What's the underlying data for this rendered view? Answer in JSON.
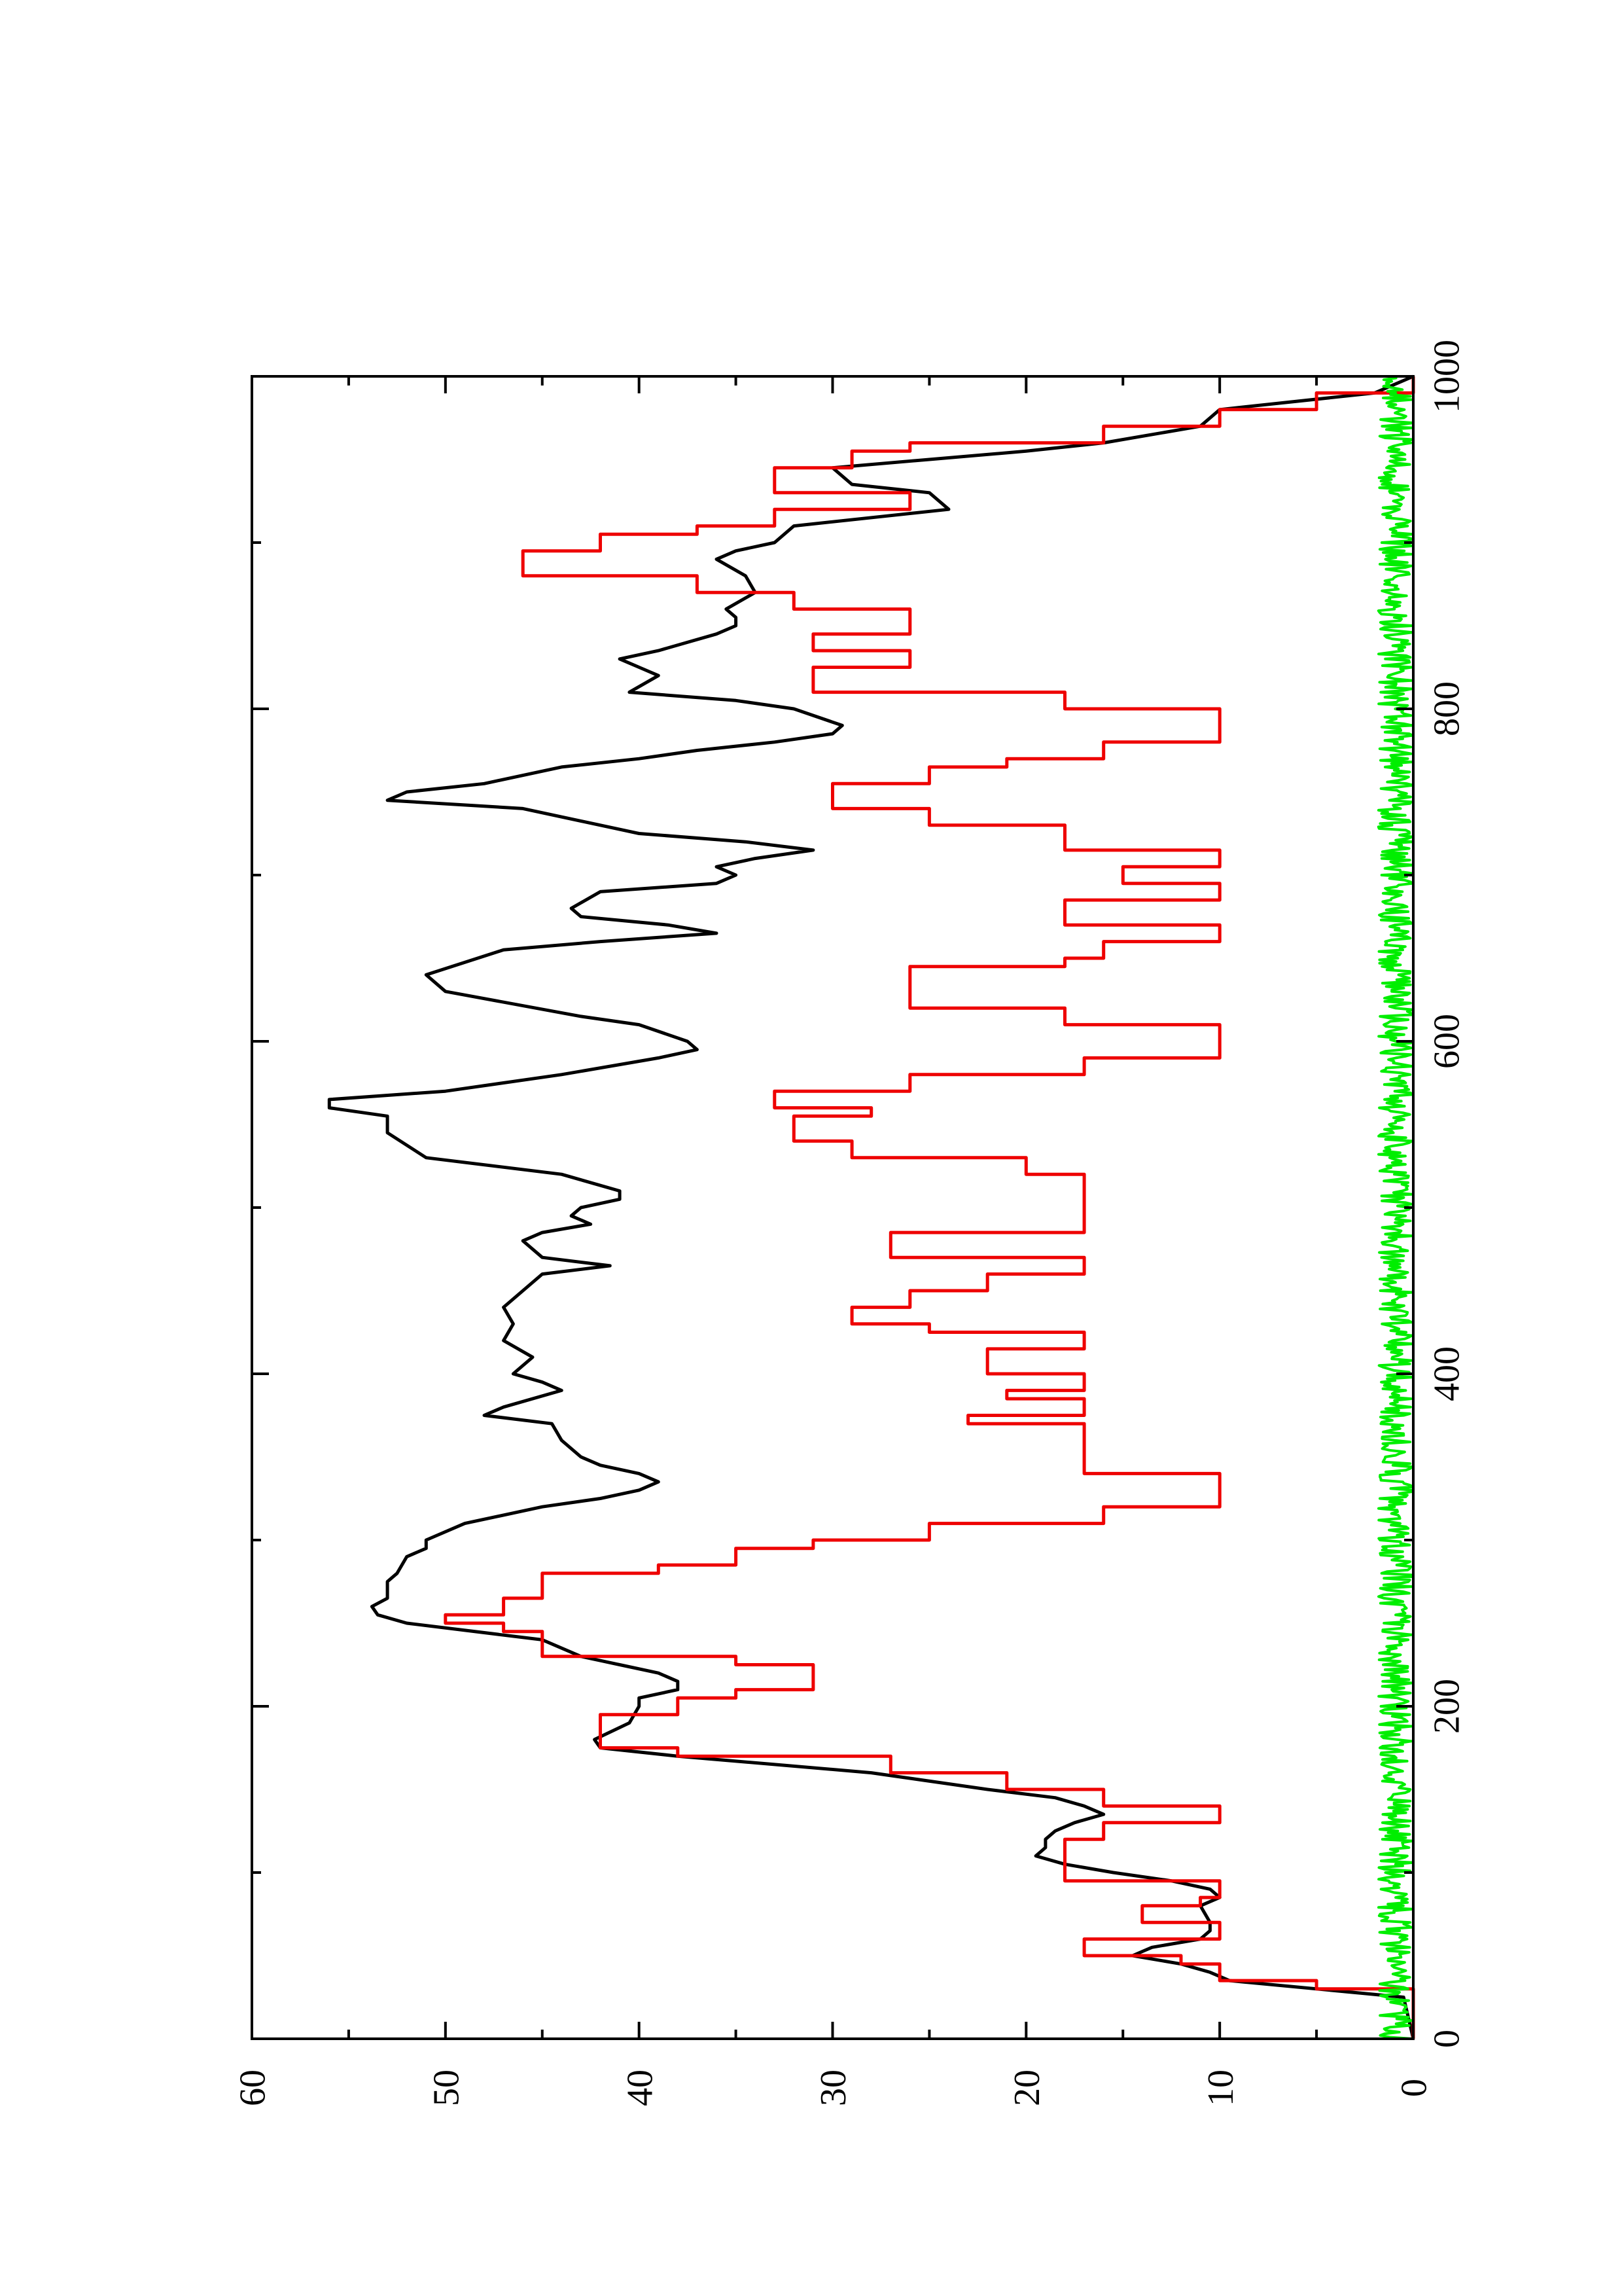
{
  "chart_data": {
    "type": "line",
    "orientation": "rotated-90-ccw",
    "xlim": [
      0,
      1000
    ],
    "ylim": [
      0,
      60
    ],
    "x_ticks": [
      0,
      200,
      400,
      600,
      800,
      1000
    ],
    "x_tick_labels": [
      "0",
      "200",
      "400",
      "600",
      "800",
      "1000"
    ],
    "x_minor_ticks": [
      100,
      300,
      500,
      700,
      900
    ],
    "y_ticks": [
      0,
      10,
      20,
      30,
      40,
      50,
      60
    ],
    "y_tick_labels": [
      "0",
      "10",
      "20",
      "30",
      "40",
      "50",
      "60"
    ],
    "y_minor_ticks": [
      5,
      15,
      25,
      35,
      45,
      55
    ],
    "grid": false,
    "legend": "none",
    "series": [
      {
        "color": "#000000",
        "step": false,
        "points": [
          [
            0,
            0
          ],
          [
            25,
            0.5
          ],
          [
            35,
            9.5
          ],
          [
            40,
            10.5
          ],
          [
            45,
            12
          ],
          [
            50,
            14.5
          ],
          [
            55,
            13.5
          ],
          [
            60,
            11
          ],
          [
            65,
            10.5
          ],
          [
            70,
            10.5
          ],
          [
            80,
            11
          ],
          [
            85,
            10
          ],
          [
            90,
            10.5
          ],
          [
            95,
            12.5
          ],
          [
            100,
            15.5
          ],
          [
            105,
            18
          ],
          [
            110,
            19.5
          ],
          [
            115,
            19
          ],
          [
            120,
            19
          ],
          [
            125,
            18.5
          ],
          [
            130,
            17.5
          ],
          [
            135,
            16
          ],
          [
            140,
            17
          ],
          [
            145,
            18.5
          ],
          [
            150,
            22
          ],
          [
            160,
            28
          ],
          [
            165,
            33
          ],
          [
            170,
            38
          ],
          [
            175,
            42
          ],
          [
            180,
            42.3
          ],
          [
            190,
            40.5
          ],
          [
            200,
            40
          ],
          [
            205,
            40
          ],
          [
            210,
            38
          ],
          [
            215,
            38
          ],
          [
            220,
            39
          ],
          [
            225,
            41
          ],
          [
            230,
            43
          ],
          [
            240,
            45
          ],
          [
            250,
            52
          ],
          [
            255,
            53.5
          ],
          [
            260,
            53.8
          ],
          [
            265,
            53
          ],
          [
            270,
            53
          ],
          [
            275,
            53
          ],
          [
            280,
            52.5
          ],
          [
            290,
            52
          ],
          [
            295,
            51
          ],
          [
            300,
            51
          ],
          [
            310,
            49
          ],
          [
            320,
            45
          ],
          [
            325,
            42
          ],
          [
            330,
            40
          ],
          [
            335,
            39
          ],
          [
            340,
            40
          ],
          [
            345,
            42
          ],
          [
            350,
            43
          ],
          [
            360,
            44
          ],
          [
            370,
            44.5
          ],
          [
            375,
            48
          ],
          [
            380,
            47
          ],
          [
            390,
            44
          ],
          [
            395,
            45
          ],
          [
            400,
            46.5
          ],
          [
            410,
            45.5
          ],
          [
            420,
            47
          ],
          [
            430,
            46.5
          ],
          [
            440,
            47
          ],
          [
            450,
            46
          ],
          [
            460,
            45
          ],
          [
            465,
            41.5
          ],
          [
            470,
            45
          ],
          [
            480,
            46
          ],
          [
            485,
            45
          ],
          [
            490,
            42.5
          ],
          [
            495,
            43.5
          ],
          [
            500,
            43
          ],
          [
            505,
            41
          ],
          [
            510,
            41
          ],
          [
            520,
            44
          ],
          [
            530,
            51
          ],
          [
            545,
            53
          ],
          [
            555,
            53
          ],
          [
            560,
            56
          ],
          [
            565,
            56
          ],
          [
            570,
            50
          ],
          [
            580,
            44
          ],
          [
            590,
            39
          ],
          [
            595,
            37
          ],
          [
            600,
            37.5
          ],
          [
            610,
            40
          ],
          [
            615,
            43
          ],
          [
            630,
            50
          ],
          [
            640,
            51
          ],
          [
            655,
            47
          ],
          [
            660,
            42
          ],
          [
            665,
            36
          ],
          [
            670,
            38.5
          ],
          [
            675,
            43
          ],
          [
            680,
            43.5
          ],
          [
            690,
            42
          ],
          [
            695,
            36
          ],
          [
            700,
            35
          ],
          [
            705,
            36
          ],
          [
            710,
            34
          ],
          [
            715,
            31
          ],
          [
            720,
            34.5
          ],
          [
            725,
            40
          ],
          [
            740,
            46
          ],
          [
            745,
            53
          ],
          [
            750,
            52
          ],
          [
            755,
            48
          ],
          [
            765,
            44
          ],
          [
            770,
            40
          ],
          [
            775,
            37
          ],
          [
            780,
            33
          ],
          [
            785,
            30
          ],
          [
            790,
            29.5
          ],
          [
            800,
            32
          ],
          [
            805,
            35
          ],
          [
            810,
            40.5
          ],
          [
            820,
            39
          ],
          [
            825,
            40
          ],
          [
            830,
            41
          ],
          [
            835,
            39
          ],
          [
            840,
            37.5
          ],
          [
            845,
            36
          ],
          [
            850,
            35
          ],
          [
            855,
            35
          ],
          [
            860,
            35.5
          ],
          [
            870,
            34
          ],
          [
            880,
            34.5
          ],
          [
            890,
            36
          ],
          [
            895,
            35
          ],
          [
            900,
            33
          ],
          [
            910,
            32
          ],
          [
            920,
            24
          ],
          [
            930,
            25
          ],
          [
            935,
            29
          ],
          [
            945,
            30
          ],
          [
            950,
            25
          ],
          [
            955,
            20
          ],
          [
            960,
            16
          ],
          [
            970,
            11
          ],
          [
            980,
            10
          ],
          [
            990,
            2
          ],
          [
            1000,
            0
          ]
        ]
      },
      {
        "color": "#ee0000",
        "step": true,
        "points": [
          [
            0,
            0
          ],
          [
            25,
            0
          ],
          [
            30,
            5
          ],
          [
            35,
            10
          ],
          [
            40,
            10
          ],
          [
            45,
            12
          ],
          [
            50,
            17
          ],
          [
            55,
            17
          ],
          [
            60,
            10
          ],
          [
            65,
            10
          ],
          [
            70,
            14
          ],
          [
            75,
            14
          ],
          [
            80,
            11
          ],
          [
            85,
            10
          ],
          [
            90,
            10
          ],
          [
            95,
            18
          ],
          [
            100,
            18
          ],
          [
            110,
            18
          ],
          [
            120,
            16
          ],
          [
            125,
            16
          ],
          [
            130,
            10
          ],
          [
            135,
            10
          ],
          [
            140,
            16
          ],
          [
            150,
            21
          ],
          [
            160,
            27
          ],
          [
            170,
            38
          ],
          [
            175,
            42
          ],
          [
            180,
            42
          ],
          [
            190,
            42
          ],
          [
            195,
            38
          ],
          [
            200,
            38
          ],
          [
            205,
            35
          ],
          [
            210,
            31
          ],
          [
            215,
            31
          ],
          [
            225,
            35
          ],
          [
            230,
            45
          ],
          [
            240,
            45
          ],
          [
            245,
            47
          ],
          [
            250,
            50
          ],
          [
            255,
            47
          ],
          [
            260,
            47
          ],
          [
            265,
            45
          ],
          [
            270,
            45
          ],
          [
            280,
            39
          ],
          [
            285,
            35
          ],
          [
            295,
            31
          ],
          [
            300,
            25
          ],
          [
            310,
            16
          ],
          [
            320,
            10
          ],
          [
            330,
            10
          ],
          [
            340,
            17
          ],
          [
            350,
            17
          ],
          [
            360,
            17
          ],
          [
            370,
            23
          ],
          [
            375,
            17
          ],
          [
            380,
            17
          ],
          [
            385,
            21
          ],
          [
            390,
            17
          ],
          [
            395,
            17
          ],
          [
            400,
            22
          ],
          [
            410,
            22
          ],
          [
            415,
            17
          ],
          [
            420,
            17
          ],
          [
            425,
            25
          ],
          [
            430,
            29
          ],
          [
            440,
            26
          ],
          [
            450,
            22
          ],
          [
            460,
            17
          ],
          [
            465,
            17
          ],
          [
            470,
            27
          ],
          [
            480,
            27
          ],
          [
            485,
            17
          ],
          [
            490,
            17
          ],
          [
            500,
            17
          ],
          [
            510,
            17
          ],
          [
            520,
            20
          ],
          [
            530,
            29
          ],
          [
            540,
            32
          ],
          [
            550,
            32
          ],
          [
            555,
            28
          ],
          [
            560,
            33
          ],
          [
            565,
            33
          ],
          [
            570,
            26
          ],
          [
            580,
            17
          ],
          [
            590,
            10
          ],
          [
            600,
            10
          ],
          [
            610,
            18
          ],
          [
            620,
            26
          ],
          [
            630,
            26
          ],
          [
            640,
            26
          ],
          [
            645,
            18
          ],
          [
            650,
            16
          ],
          [
            660,
            10
          ],
          [
            665,
            10
          ],
          [
            670,
            18
          ],
          [
            680,
            18
          ],
          [
            685,
            10
          ],
          [
            690,
            10
          ],
          [
            695,
            15
          ],
          [
            700,
            15
          ],
          [
            705,
            10
          ],
          [
            710,
            10
          ],
          [
            715,
            18
          ],
          [
            720,
            18
          ],
          [
            730,
            25
          ],
          [
            740,
            30
          ],
          [
            750,
            30
          ],
          [
            755,
            25
          ],
          [
            765,
            21
          ],
          [
            770,
            16
          ],
          [
            780,
            10
          ],
          [
            790,
            10
          ],
          [
            800,
            18
          ],
          [
            810,
            31
          ],
          [
            820,
            31
          ],
          [
            825,
            26
          ],
          [
            830,
            26
          ],
          [
            835,
            31
          ],
          [
            840,
            31
          ],
          [
            845,
            26
          ],
          [
            850,
            26
          ],
          [
            860,
            32
          ],
          [
            870,
            37
          ],
          [
            880,
            46
          ],
          [
            890,
            46
          ],
          [
            895,
            42
          ],
          [
            905,
            37
          ],
          [
            910,
            33
          ],
          [
            920,
            26
          ],
          [
            925,
            26
          ],
          [
            930,
            33
          ],
          [
            940,
            33
          ],
          [
            945,
            29
          ],
          [
            955,
            26
          ],
          [
            960,
            16
          ],
          [
            970,
            10
          ],
          [
            980,
            5
          ],
          [
            990,
            0
          ],
          [
            1000,
            0
          ]
        ]
      },
      {
        "color": "#00ee00",
        "step": false,
        "noise": true,
        "mean": 0.9,
        "amplitude": 0.9,
        "n_points": 1000
      }
    ]
  }
}
